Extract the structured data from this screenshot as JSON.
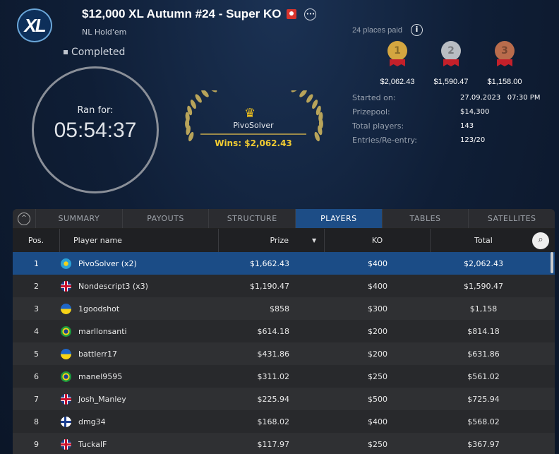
{
  "header": {
    "logo": "XL",
    "title": "$12,000 XL Autumn #24 - Super KO",
    "game": "NL Hold'em",
    "status": "Completed",
    "ran_for_label": "Ran for:",
    "ran_for": "05:54:37"
  },
  "winner": {
    "name": "PivoSolver",
    "wins": "Wins: $2,062.43"
  },
  "payouts": {
    "places_paid": "24 places paid",
    "medals": [
      {
        "rank": "1",
        "amount": "$2,062.43",
        "color": "#d4a640"
      },
      {
        "rank": "2",
        "amount": "$1,590.47",
        "color": "#b8bcc2"
      },
      {
        "rank": "3",
        "amount": "$1,158.00",
        "color": "#b96c4c"
      }
    ]
  },
  "info": [
    {
      "label": "Started on:",
      "value": "27.09.2023   07:30 PM"
    },
    {
      "label": "Prizepool:",
      "value": "$14,300"
    },
    {
      "label": "Total players:",
      "value": "143"
    },
    {
      "label": "Entries/Re-entry:",
      "value": "123/20"
    }
  ],
  "tabs": [
    "SUMMARY",
    "PAYOUTS",
    "STRUCTURE",
    "PLAYERS",
    "TABLES",
    "SATELLITES"
  ],
  "active_tab": "PLAYERS",
  "columns": [
    "Pos.",
    "Player name",
    "Prize",
    "KO",
    "Total"
  ],
  "rows": [
    {
      "pos": "1",
      "flag": "kz",
      "name": "PivoSolver (x2)",
      "prize": "$1,662.43",
      "ko": "$400",
      "total": "$2,062.43"
    },
    {
      "pos": "2",
      "flag": "gb",
      "name": "Nondescript3 (x3)",
      "prize": "$1,190.47",
      "ko": "$400",
      "total": "$1,590.47"
    },
    {
      "pos": "3",
      "flag": "ua",
      "name": "1goodshot",
      "prize": "$858",
      "ko": "$300",
      "total": "$1,158"
    },
    {
      "pos": "4",
      "flag": "br",
      "name": "marllonsanti",
      "prize": "$614.18",
      "ko": "$200",
      "total": "$814.18"
    },
    {
      "pos": "5",
      "flag": "ua",
      "name": "battlerr17",
      "prize": "$431.86",
      "ko": "$200",
      "total": "$631.86"
    },
    {
      "pos": "6",
      "flag": "br",
      "name": "manel9595",
      "prize": "$311.02",
      "ko": "$250",
      "total": "$561.02"
    },
    {
      "pos": "7",
      "flag": "gb",
      "name": "Josh_Manley",
      "prize": "$225.94",
      "ko": "$500",
      "total": "$725.94"
    },
    {
      "pos": "8",
      "flag": "fi",
      "name": "dmg34",
      "prize": "$168.02",
      "ko": "$400",
      "total": "$568.02"
    },
    {
      "pos": "9",
      "flag": "gb",
      "name": "TuckalF",
      "prize": "$117.97",
      "ko": "$250",
      "total": "$367.97"
    }
  ],
  "colors": {
    "accent": "#1d4d86",
    "gold": "#f1cb32"
  }
}
